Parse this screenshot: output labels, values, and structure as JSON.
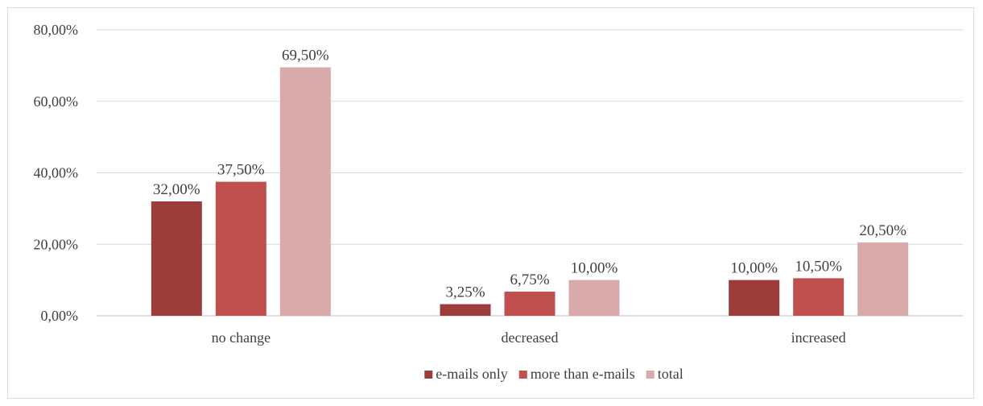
{
  "chart_data": {
    "type": "bar",
    "title": "",
    "xlabel": "",
    "ylabel": "",
    "categories": [
      "no change",
      "decreased",
      "increased"
    ],
    "series": [
      {
        "name": "e-mails only",
        "color": "#9c3d3c",
        "values": [
          32.0,
          3.25,
          10.0
        ],
        "labels": [
          "32,00%",
          "3,25%",
          "10,00%"
        ]
      },
      {
        "name": "more than e-mails",
        "color": "#c0504d",
        "values": [
          37.5,
          6.75,
          10.5
        ],
        "labels": [
          "37,50%",
          "6,75%",
          "10,50%"
        ]
      },
      {
        "name": "total",
        "color": "#d9aaaa",
        "values": [
          69.5,
          10.0,
          20.5
        ],
        "labels": [
          "69,50%",
          "10,00%",
          "20,50%"
        ]
      }
    ],
    "ylim": [
      0,
      80
    ],
    "yticks": [
      0,
      20,
      40,
      60,
      80
    ],
    "ytick_labels": [
      "0,00%",
      "20,00%",
      "40,00%",
      "60,00%",
      "80,00%"
    ],
    "grid": true,
    "legend_position": "bottom"
  }
}
